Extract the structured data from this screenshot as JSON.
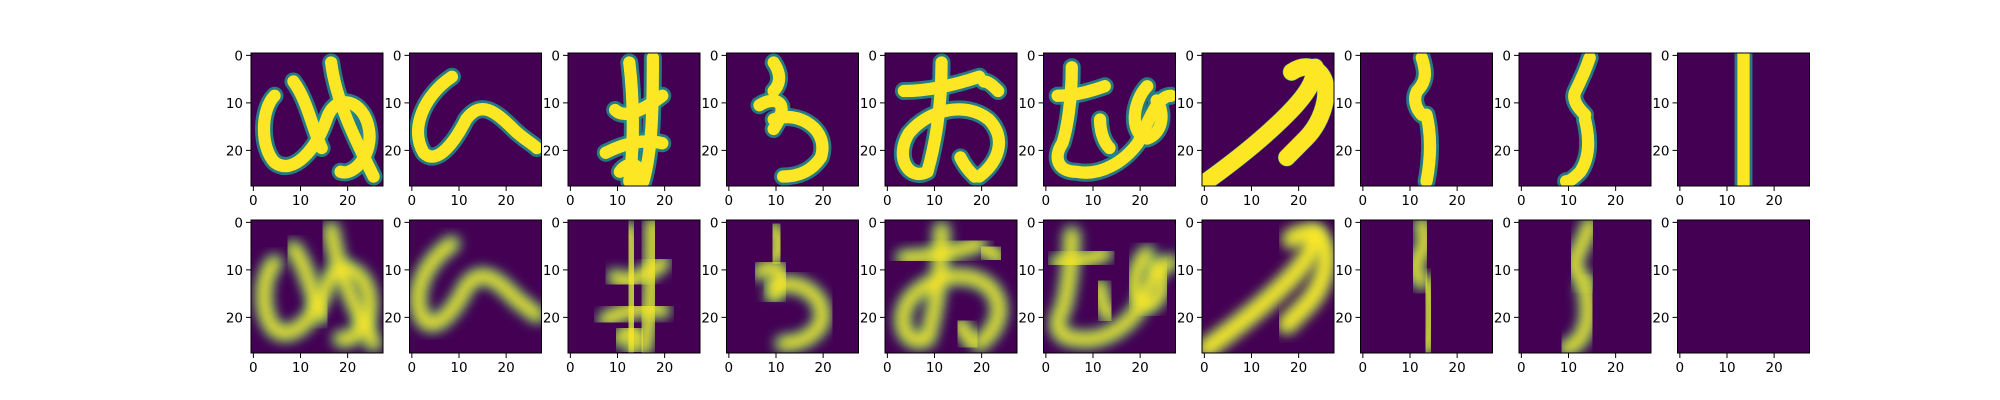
{
  "chart_data": {
    "type": "image-grid",
    "rows": 2,
    "cols": 10,
    "image_size": [
      28,
      28
    ],
    "colormap": "viridis",
    "colors": {
      "background": "#440154",
      "foreground": "#fde725",
      "edge": "#21918c",
      "text": "#000000"
    },
    "x_ticks": [
      "0",
      "10",
      "20"
    ],
    "y_ticks": [
      "0",
      "10",
      "20"
    ],
    "grid": false,
    "panels_description": "row 1 = input characters, row 2 = reconstructions (same sequence)",
    "glyphs": [
      "me",
      "he",
      "su",
      "u",
      "o",
      "mu",
      "curve",
      "ri-hook",
      "ri",
      "bar"
    ]
  }
}
